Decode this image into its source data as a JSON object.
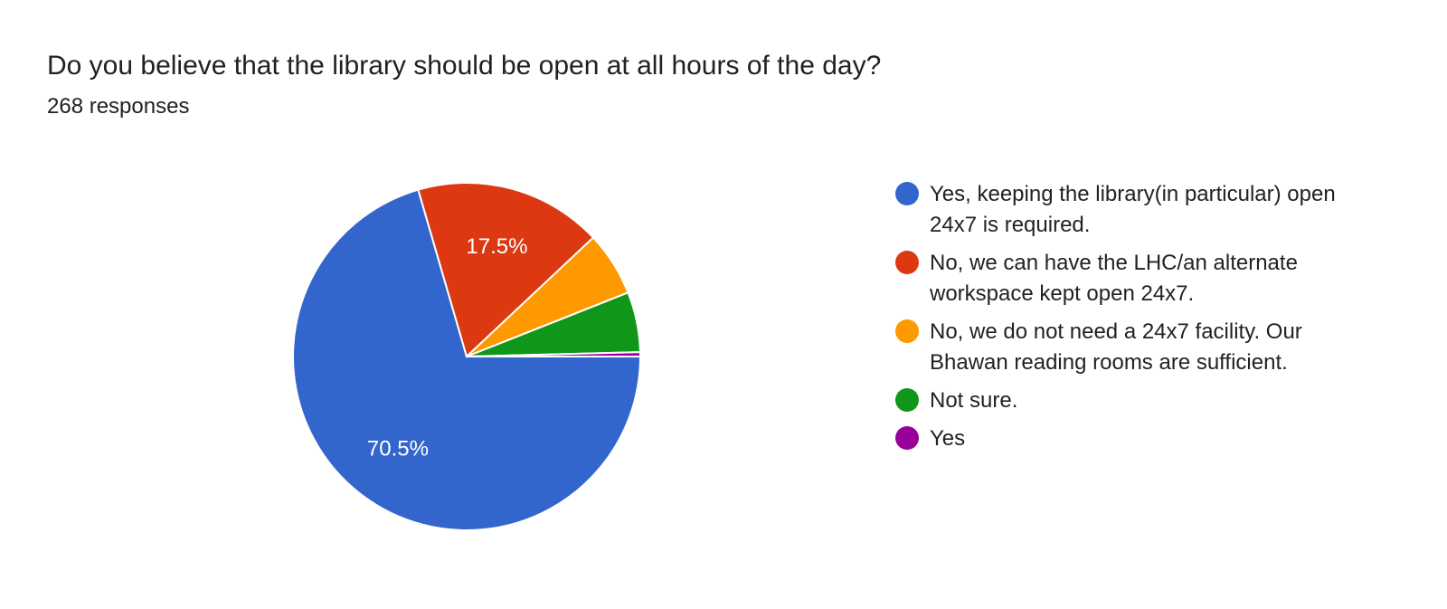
{
  "chart_data": {
    "type": "pie",
    "title": "Do you believe that the library should be open at all hours of the day?",
    "subtitle": "268 responses",
    "legend_position": "right",
    "start_angle": "3 o'clock, clockwise",
    "slices": [
      {
        "label": "Yes, keeping the library(in particular) open 24x7 is required.",
        "percent": 70.5,
        "data_label": "70.5%",
        "color": "#3366cc"
      },
      {
        "label": "No, we can have the LHC/an alternate workspace kept open 24x7.",
        "percent": 17.5,
        "data_label": "17.5%",
        "color": "#dc3912"
      },
      {
        "label": "No, we do not need a 24x7 facility. Our Bhawan reading rooms are sufficient.",
        "percent": 6.0,
        "data_label": "",
        "color": "#ff9900"
      },
      {
        "label": "Not sure.",
        "percent": 5.6,
        "data_label": "",
        "color": "#109618"
      },
      {
        "label": "Yes",
        "percent": 0.4,
        "data_label": "",
        "color": "#990099"
      }
    ]
  }
}
